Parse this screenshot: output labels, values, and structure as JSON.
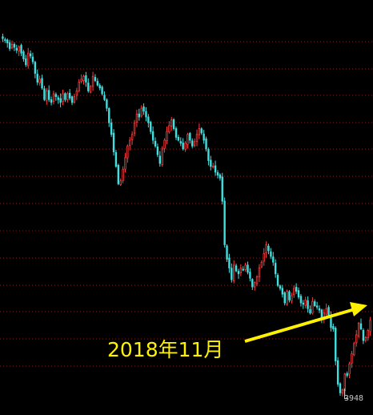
{
  "chart_data": {
    "type": "candlestick",
    "title": "",
    "colors": {
      "up": "#FF3C3C",
      "down": "#40E0E0",
      "grid": "#8B1A1A",
      "background": "#000000",
      "annotation": "#FFF200"
    },
    "grid": true,
    "series": [
      {
        "close": [
          4910,
          4905,
          4895,
          4875,
          4890,
          4880,
          4870,
          4882,
          4860,
          4840,
          4820,
          4860,
          4850,
          4830,
          4790,
          4760,
          4770,
          4740,
          4700,
          4730,
          4700,
          4690,
          4720,
          4710,
          4700,
          4690,
          4720,
          4700,
          4720,
          4705,
          4690,
          4710,
          4730,
          4760,
          4770,
          4780,
          4760,
          4730,
          4745,
          4780,
          4765,
          4750,
          4740,
          4720,
          4700,
          4670,
          4620,
          4580,
          4520,
          4470,
          4410,
          4420,
          4460,
          4500,
          4540,
          4560,
          4580,
          4620,
          4650,
          4640,
          4670,
          4660,
          4640,
          4620,
          4590,
          4560,
          4540,
          4510,
          4480,
          4530,
          4560,
          4590,
          4610,
          4630,
          4600,
          4570,
          4560,
          4550,
          4530,
          4550,
          4580,
          4560,
          4540,
          4555,
          4580,
          4600,
          4585,
          4560,
          4530,
          4490,
          4470,
          4470,
          4450,
          4440,
          4430,
          4350,
          4200,
          4150,
          4120,
          4080,
          4130,
          4110,
          4100,
          4120,
          4115,
          4130,
          4105,
          4085,
          4055,
          4070,
          4090,
          4120,
          4140,
          4170,
          4200,
          4180,
          4160,
          4140,
          4100,
          4060,
          4050,
          4030,
          4000,
          4040,
          4010,
          4025,
          4050,
          4040,
          4020,
          4000,
          3995,
          4010,
          3980,
          3965,
          4005,
          3990,
          3985,
          3975,
          3945,
          3965,
          3980,
          3955,
          3915,
          3910,
          3800,
          3720,
          3690,
          3700,
          3755,
          3750,
          3790,
          3825,
          3860,
          3890,
          3930,
          3910,
          3870,
          3880,
          3905,
          3940
        ]
      }
    ],
    "ylim": [
      3680,
      4960
    ],
    "low_label": "3948",
    "annotation": {
      "text": "2018年11月",
      "arrow_from_index": 150,
      "arrow_to_index": 164
    }
  }
}
